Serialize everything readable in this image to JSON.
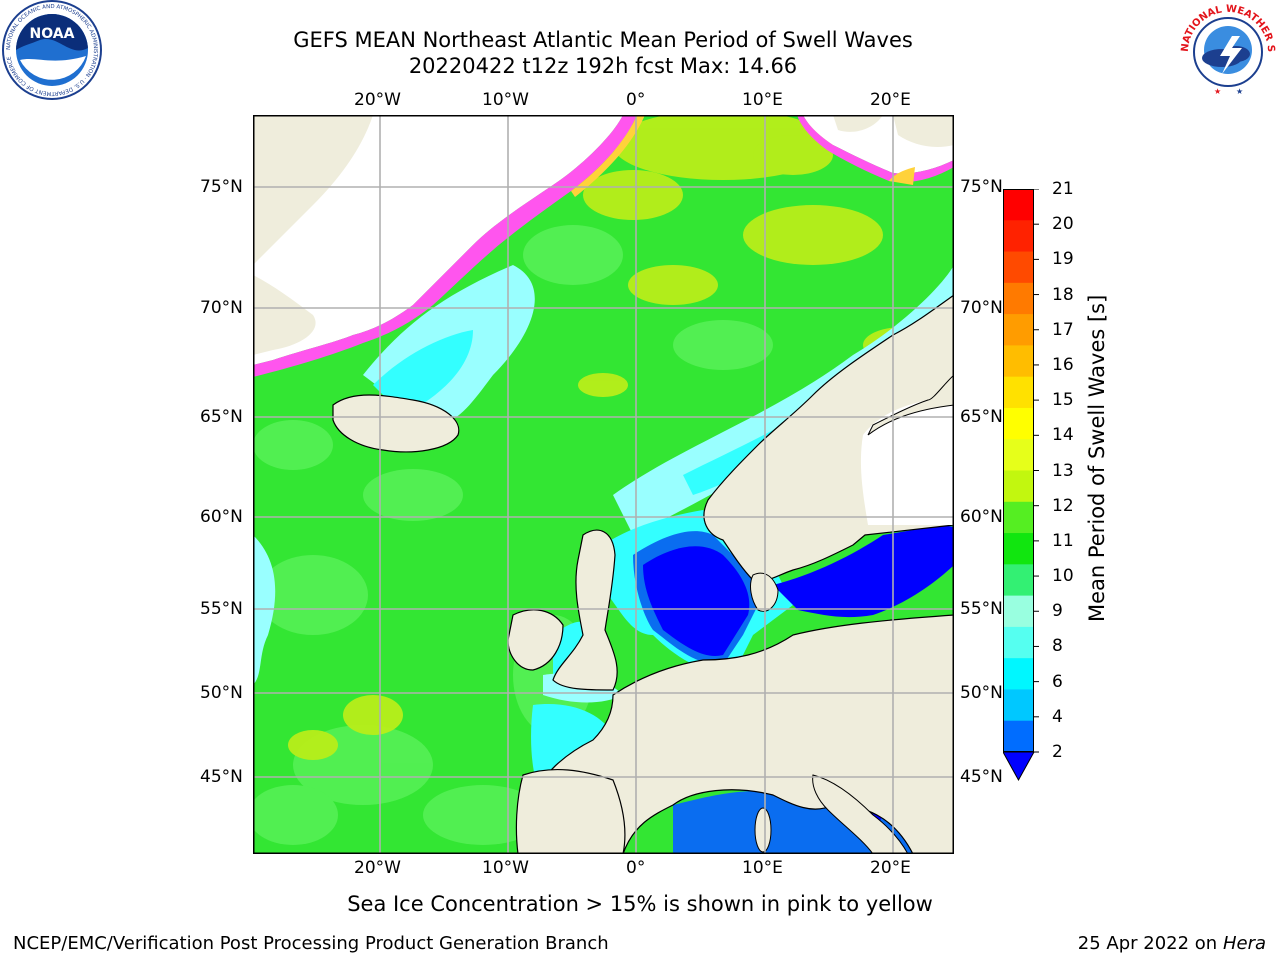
{
  "header": {
    "title_line1": "GEFS MEAN Northeast Atlantic Mean Period of Swell Waves",
    "title_line2": "20220422 t12z 192h fcst   Max: 14.66",
    "noaa_logo_text": "NOAA",
    "noaa_ring_text": "NATIONAL OCEANIC AND ATMOSPHERIC ADMINISTRATION · U.S. DEPARTMENT OF COMMERCE",
    "nws_ring_text": "NATIONAL WEATHER SERVICE"
  },
  "map": {
    "lon_ticks_top": [
      "20°W",
      "10°W",
      "0°",
      "10°E",
      "20°E"
    ],
    "lon_ticks_bottom": [
      "20°W",
      "10°W",
      "0°",
      "10°E",
      "20°E"
    ],
    "lat_ticks_left": [
      "75°N",
      "70°N",
      "65°N",
      "60°N",
      "55°N",
      "50°N",
      "45°N"
    ],
    "lat_ticks_right": [
      "75°N",
      "70°N",
      "65°N",
      "60°N",
      "55°N",
      "50°N",
      "45°N"
    ],
    "colors": {
      "land": "#efeddc",
      "ocean_green": "#33e633",
      "ocean_light_green": "#55f055",
      "ocean_yellowgreen": "#b8ee1a",
      "ocean_cyan": "#33ffff",
      "ocean_lightcyan": "#99ffff",
      "ocean_blue": "#0000ff",
      "ocean_midblue": "#0a6df0",
      "ice_pink": "#ff55ee",
      "ice_yellow": "#ffd23a",
      "gridline": "#b0b0b0"
    }
  },
  "colorbar": {
    "label": "Mean Period of Swell Waves [s]",
    "ticks": [
      "21",
      "20",
      "19",
      "18",
      "17",
      "16",
      "15",
      "14",
      "13",
      "12",
      "11",
      "10",
      "9",
      "8",
      "6",
      "4",
      "2"
    ],
    "segments": [
      "#ff0000",
      "#ff2200",
      "#ff4a00",
      "#ff7a00",
      "#ff9c00",
      "#ffbd00",
      "#ffe100",
      "#ffff00",
      "#e6ff1a",
      "#c2f70f",
      "#55ee22",
      "#11e60f",
      "#33f073",
      "#99ffe0",
      "#55fff0",
      "#00f7ff",
      "#00c8ff",
      "#006dff"
    ],
    "extend_color": "#0000ff"
  },
  "caption": "Sea Ice Concentration > 15% is shown in pink to yellow",
  "footer": {
    "left": "NCEP/EMC/Verification Post Processing Product Generation Branch",
    "right_date": "25 Apr 2022 on",
    "right_host": "Hera"
  }
}
